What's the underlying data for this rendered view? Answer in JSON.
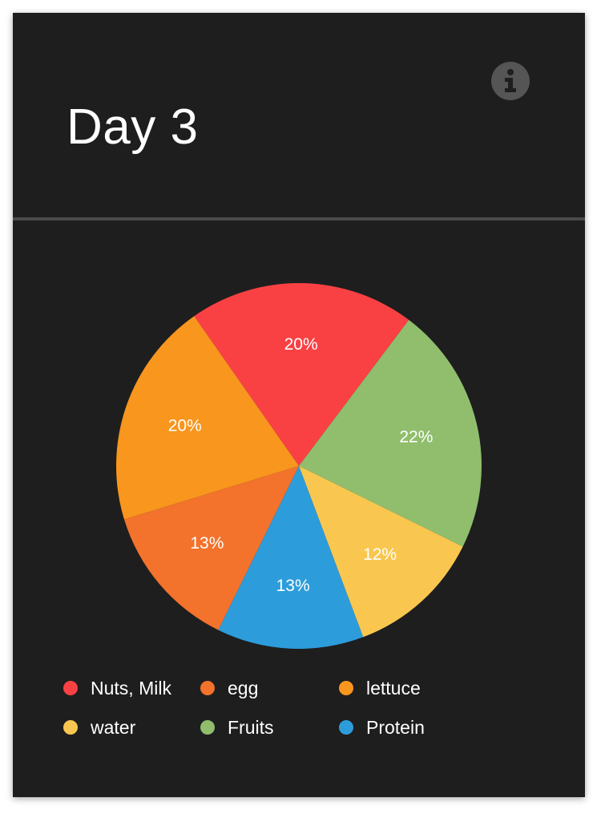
{
  "header": {
    "title": "Day 3",
    "info_icon": "info-circle-icon"
  },
  "colors": {
    "background": "#1e1e1e",
    "divider": "#4a4a4a",
    "info_icon": "#555555"
  },
  "chart_data": {
    "type": "pie",
    "categories": [
      "Nuts, Milk",
      "egg",
      "lettuce",
      "water",
      "Fruits",
      "Protein"
    ],
    "values": [
      20,
      13,
      20,
      12,
      22,
      13
    ],
    "value_labels": [
      "20%",
      "13%",
      "20%",
      "12%",
      "22%",
      "13%"
    ],
    "colors": [
      "#f94144",
      "#f3722c",
      "#f8961e",
      "#f9c74f",
      "#90be6d",
      "#2d9cdb"
    ],
    "slice_order": [
      "Nuts, Milk",
      "Fruits",
      "water",
      "Protein",
      "egg",
      "lettuce"
    ],
    "title": "",
    "legend": "bottom"
  }
}
